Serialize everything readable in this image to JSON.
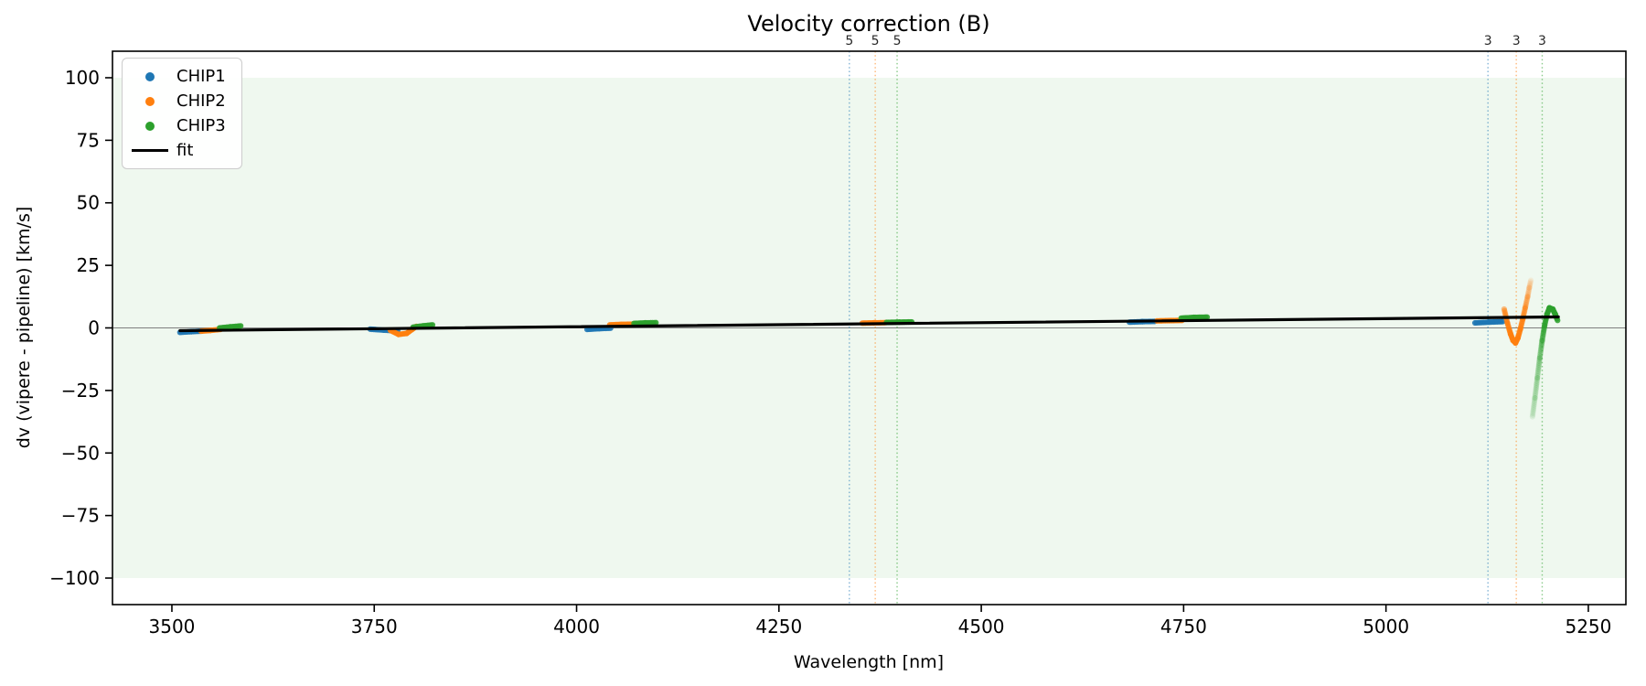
{
  "chart_data": {
    "type": "scatter",
    "title": "Velocity correction (B)",
    "xlabel": "Wavelength [nm]",
    "ylabel": "dv (vipere - pipeline) [km/s]",
    "xlim": [
      3426.6,
      5296.4
    ],
    "ylim": [
      -110.6,
      110.6
    ],
    "xticks": [
      3500,
      3750,
      4000,
      4250,
      4500,
      4750,
      5000,
      5250
    ],
    "yticks": [
      100,
      75,
      50,
      25,
      0,
      -25,
      -50,
      -75,
      -100
    ],
    "grid": false,
    "band": {
      "ymin": -100,
      "ymax": 100,
      "color": "#2ca02c",
      "opacity": 0.075
    },
    "zero_line": {
      "y": 0,
      "color": "#7f7f7f"
    },
    "vlines": [
      {
        "x": 4337,
        "label": "5",
        "series": "CHIP1",
        "color": "#1f77b4"
      },
      {
        "x": 4369,
        "label": "5",
        "series": "CHIP2",
        "color": "#ff7f0e"
      },
      {
        "x": 4396,
        "label": "5",
        "series": "CHIP3",
        "color": "#2ca02c"
      },
      {
        "x": 5126,
        "label": "3",
        "series": "CHIP1",
        "color": "#1f77b4"
      },
      {
        "x": 5161,
        "label": "3",
        "series": "CHIP2",
        "color": "#ff7f0e"
      },
      {
        "x": 5193,
        "label": "3",
        "series": "CHIP3",
        "color": "#2ca02c"
      }
    ],
    "series": [
      {
        "name": "CHIP1",
        "color": "#1f77b4",
        "segments": [
          [
            [
              3510,
              -1.8,
              0.9
            ],
            [
              3524,
              -1.5,
              0.9
            ],
            [
              3537,
              -1.3,
              0.9
            ]
          ],
          [
            [
              3745,
              -0.5,
              0.9
            ],
            [
              3762,
              -0.9,
              0.9
            ],
            [
              3779,
              -1.2,
              0.9
            ]
          ],
          [
            [
              4013,
              -0.6,
              0.9
            ],
            [
              4028,
              -0.3,
              0.9
            ],
            [
              4042,
              -0.1,
              0.9
            ]
          ],
          [
            [
              4683,
              2.3,
              0.9
            ],
            [
              4699,
              2.5,
              0.9
            ],
            [
              4714,
              2.6,
              0.9
            ]
          ],
          [
            [
              5110,
              2.0,
              0.9
            ],
            [
              5127,
              2.3,
              0.9
            ],
            [
              5144,
              2.5,
              0.9
            ]
          ]
        ]
      },
      {
        "name": "CHIP2",
        "color": "#ff7f0e",
        "segments": [
          [
            [
              3536,
              -1.3,
              0.9
            ],
            [
              3548,
              -1.0,
              0.9
            ],
            [
              3560,
              -0.6,
              0.9
            ]
          ],
          [
            [
              3770,
              -1.0,
              0.9
            ],
            [
              3780,
              -2.6,
              0.9
            ],
            [
              3790,
              -2.2,
              0.9
            ],
            [
              3802,
              0.6,
              0.9
            ]
          ],
          [
            [
              4041,
              1.2,
              0.9
            ],
            [
              4055,
              1.4,
              0.9
            ],
            [
              4069,
              1.5,
              0.9
            ]
          ],
          [
            [
              4353,
              1.9,
              0.9
            ],
            [
              4367,
              2.0,
              0.9
            ],
            [
              4381,
              2.1,
              0.9
            ]
          ],
          [
            [
              4717,
              2.8,
              0.9
            ],
            [
              4732,
              2.9,
              0.9
            ],
            [
              4748,
              3.0,
              0.9
            ]
          ],
          [
            [
              5146,
              7.5,
              0.5
            ],
            [
              5150,
              2.0,
              0.6
            ],
            [
              5154,
              -2.5,
              0.8
            ],
            [
              5157,
              -5.0,
              0.95
            ],
            [
              5160,
              -6.0,
              0.95
            ],
            [
              5163,
              -4.0,
              0.85
            ],
            [
              5166,
              -0.5,
              0.7
            ],
            [
              5169,
              3.5,
              0.55
            ],
            [
              5172,
              8.0,
              0.4
            ],
            [
              5175,
              12.5,
              0.28
            ],
            [
              5177,
              16.0,
              0.18
            ],
            [
              5179,
              19.0,
              0.1
            ]
          ]
        ]
      },
      {
        "name": "CHIP3",
        "color": "#2ca02c",
        "segments": [
          [
            [
              3559,
              0.0,
              0.9
            ],
            [
              3572,
              0.4,
              0.9
            ],
            [
              3585,
              0.8,
              0.9
            ]
          ],
          [
            [
              3798,
              0.3,
              0.9
            ],
            [
              3810,
              0.8,
              0.9
            ],
            [
              3822,
              1.2,
              0.9
            ]
          ],
          [
            [
              4071,
              1.8,
              0.9
            ],
            [
              4085,
              2.0,
              0.9
            ],
            [
              4098,
              2.1,
              0.9
            ]
          ],
          [
            [
              4383,
              2.2,
              0.9
            ],
            [
              4399,
              2.3,
              0.9
            ],
            [
              4414,
              2.4,
              0.9
            ]
          ],
          [
            [
              4747,
              3.9,
              0.9
            ],
            [
              4763,
              4.2,
              0.9
            ],
            [
              4779,
              4.3,
              0.9
            ]
          ],
          [
            [
              5181,
              -35.5,
              0.1
            ],
            [
              5184,
              -28.0,
              0.14
            ],
            [
              5187,
              -20.0,
              0.18
            ],
            [
              5190,
              -12.0,
              0.25
            ],
            [
              5193,
              -5.0,
              0.4
            ],
            [
              5196,
              1.0,
              0.6
            ],
            [
              5199,
              5.5,
              0.8
            ],
            [
              5202,
              8.0,
              1.0
            ],
            [
              5206,
              7.5,
              1.0
            ],
            [
              5209,
              5.5,
              0.95
            ],
            [
              5212,
              3.0,
              0.85
            ]
          ]
        ]
      }
    ],
    "fit_line": {
      "label": "fit",
      "color": "#000000",
      "points": [
        [
          3510,
          -1.1
        ],
        [
          5213,
          4.4
        ]
      ]
    },
    "legend": {
      "position": "upper left",
      "entries": [
        {
          "label": "CHIP1",
          "marker": "dot",
          "color": "#1f77b4"
        },
        {
          "label": "CHIP2",
          "marker": "dot",
          "color": "#ff7f0e"
        },
        {
          "label": "CHIP3",
          "marker": "dot",
          "color": "#2ca02c"
        },
        {
          "label": "fit",
          "marker": "line",
          "color": "#000000"
        }
      ]
    }
  }
}
